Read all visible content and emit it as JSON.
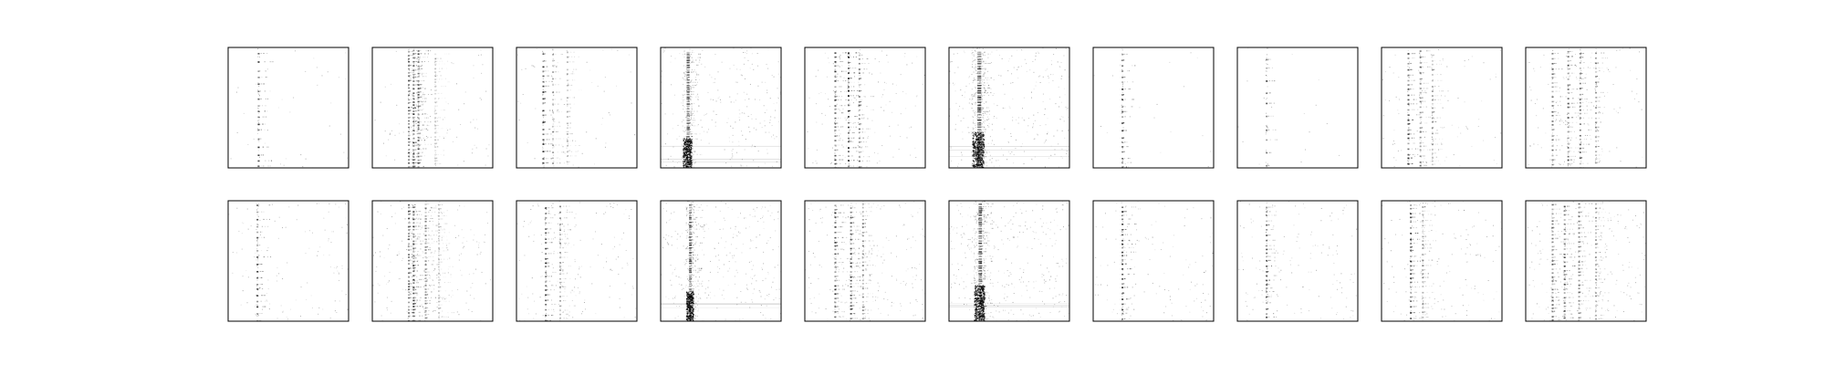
{
  "chart_data": {
    "type": "heatmap",
    "grid": {
      "rows": 2,
      "cols": 10
    },
    "colormap": "gray_r",
    "value_range": [
      0,
      1
    ],
    "axes_ticks": "none",
    "title": "",
    "panels": [
      {
        "row": 0,
        "col": 0,
        "columns": [
          {
            "x": 0.25,
            "strength": 0.85,
            "width": 0.012
          }
        ],
        "row_step": 0.06,
        "noise": 0.01,
        "dense_bottom": 0.0
      },
      {
        "row": 0,
        "col": 1,
        "columns": [
          {
            "x": 0.3,
            "strength": 0.7,
            "width": 0.01
          },
          {
            "x": 0.34,
            "strength": 0.85,
            "width": 0.01
          },
          {
            "x": 0.38,
            "strength": 0.75,
            "width": 0.01
          },
          {
            "x": 0.52,
            "strength": 0.25,
            "width": 0.01
          }
        ],
        "row_step": 0.03,
        "noise": 0.02,
        "dense_bottom": 0.0
      },
      {
        "row": 0,
        "col": 2,
        "columns": [
          {
            "x": 0.22,
            "strength": 0.9,
            "width": 0.01
          },
          {
            "x": 0.3,
            "strength": 0.45,
            "width": 0.01
          },
          {
            "x": 0.42,
            "strength": 0.35,
            "width": 0.01
          }
        ],
        "row_step": 0.05,
        "noise": 0.015,
        "dense_bottom": 0.0
      },
      {
        "row": 0,
        "col": 3,
        "columns": [
          {
            "x": 0.22,
            "strength": 0.7,
            "width": 0.06
          }
        ],
        "row_step": 0.02,
        "noise": 0.06,
        "dense_bottom": 0.25
      },
      {
        "row": 0,
        "col": 4,
        "columns": [
          {
            "x": 0.25,
            "strength": 0.85,
            "width": 0.01
          },
          {
            "x": 0.36,
            "strength": 0.9,
            "width": 0.01
          },
          {
            "x": 0.45,
            "strength": 0.55,
            "width": 0.01
          }
        ],
        "row_step": 0.04,
        "noise": 0.03,
        "dense_bottom": 0.0
      },
      {
        "row": 0,
        "col": 5,
        "columns": [
          {
            "x": 0.24,
            "strength": 0.75,
            "width": 0.08
          }
        ],
        "row_step": 0.02,
        "noise": 0.07,
        "dense_bottom": 0.3
      },
      {
        "row": 0,
        "col": 6,
        "columns": [
          {
            "x": 0.24,
            "strength": 0.8,
            "width": 0.012
          }
        ],
        "row_step": 0.05,
        "noise": 0.005,
        "dense_bottom": 0.0
      },
      {
        "row": 0,
        "col": 7,
        "columns": [
          {
            "x": 0.24,
            "strength": 0.8,
            "width": 0.012
          }
        ],
        "row_step": 0.09,
        "noise": 0.004,
        "dense_bottom": 0.0
      },
      {
        "row": 0,
        "col": 8,
        "columns": [
          {
            "x": 0.22,
            "strength": 0.85,
            "width": 0.012
          },
          {
            "x": 0.32,
            "strength": 0.6,
            "width": 0.01
          },
          {
            "x": 0.42,
            "strength": 0.45,
            "width": 0.01
          }
        ],
        "row_step": 0.04,
        "noise": 0.02,
        "dense_bottom": 0.0
      },
      {
        "row": 0,
        "col": 9,
        "columns": [
          {
            "x": 0.22,
            "strength": 0.6,
            "width": 0.01
          },
          {
            "x": 0.35,
            "strength": 0.7,
            "width": 0.01
          },
          {
            "x": 0.45,
            "strength": 0.7,
            "width": 0.01
          },
          {
            "x": 0.58,
            "strength": 0.5,
            "width": 0.01
          }
        ],
        "row_step": 0.04,
        "noise": 0.025,
        "dense_bottom": 0.0
      },
      {
        "row": 1,
        "col": 0,
        "columns": [
          {
            "x": 0.24,
            "strength": 0.85,
            "width": 0.014
          }
        ],
        "row_step": 0.05,
        "noise": 0.03,
        "dense_bottom": 0.0
      },
      {
        "row": 1,
        "col": 1,
        "columns": [
          {
            "x": 0.3,
            "strength": 0.7,
            "width": 0.01
          },
          {
            "x": 0.34,
            "strength": 0.85,
            "width": 0.01
          },
          {
            "x": 0.44,
            "strength": 0.55,
            "width": 0.01
          },
          {
            "x": 0.55,
            "strength": 0.3,
            "width": 0.01
          }
        ],
        "row_step": 0.03,
        "noise": 0.045,
        "dense_bottom": 0.0
      },
      {
        "row": 1,
        "col": 2,
        "columns": [
          {
            "x": 0.24,
            "strength": 0.85,
            "width": 0.012
          },
          {
            "x": 0.36,
            "strength": 0.45,
            "width": 0.01
          }
        ],
        "row_step": 0.04,
        "noise": 0.04,
        "dense_bottom": 0.0
      },
      {
        "row": 1,
        "col": 3,
        "columns": [
          {
            "x": 0.24,
            "strength": 0.75,
            "width": 0.05
          }
        ],
        "row_step": 0.02,
        "noise": 0.07,
        "dense_bottom": 0.25
      },
      {
        "row": 1,
        "col": 4,
        "columns": [
          {
            "x": 0.25,
            "strength": 0.85,
            "width": 0.01
          },
          {
            "x": 0.38,
            "strength": 0.85,
            "width": 0.012
          },
          {
            "x": 0.48,
            "strength": 0.5,
            "width": 0.01
          }
        ],
        "row_step": 0.035,
        "noise": 0.05,
        "dense_bottom": 0.0
      },
      {
        "row": 1,
        "col": 5,
        "columns": [
          {
            "x": 0.25,
            "strength": 0.75,
            "width": 0.07
          }
        ],
        "row_step": 0.02,
        "noise": 0.08,
        "dense_bottom": 0.3
      },
      {
        "row": 1,
        "col": 6,
        "columns": [
          {
            "x": 0.24,
            "strength": 0.85,
            "width": 0.012
          }
        ],
        "row_step": 0.04,
        "noise": 0.03,
        "dense_bottom": 0.0
      },
      {
        "row": 1,
        "col": 7,
        "columns": [
          {
            "x": 0.24,
            "strength": 0.75,
            "width": 0.012
          }
        ],
        "row_step": 0.04,
        "noise": 0.035,
        "dense_bottom": 0.0
      },
      {
        "row": 1,
        "col": 8,
        "columns": [
          {
            "x": 0.24,
            "strength": 0.85,
            "width": 0.012
          },
          {
            "x": 0.34,
            "strength": 0.5,
            "width": 0.01
          }
        ],
        "row_step": 0.04,
        "noise": 0.04,
        "dense_bottom": 0.0
      },
      {
        "row": 1,
        "col": 9,
        "columns": [
          {
            "x": 0.22,
            "strength": 0.65,
            "width": 0.01
          },
          {
            "x": 0.32,
            "strength": 0.75,
            "width": 0.012
          },
          {
            "x": 0.44,
            "strength": 0.6,
            "width": 0.01
          },
          {
            "x": 0.58,
            "strength": 0.5,
            "width": 0.01
          }
        ],
        "row_step": 0.035,
        "noise": 0.05,
        "dense_bottom": 0.0
      }
    ]
  },
  "colors": {
    "frame": "#000000",
    "background": "#ffffff",
    "ink": "#000000"
  }
}
